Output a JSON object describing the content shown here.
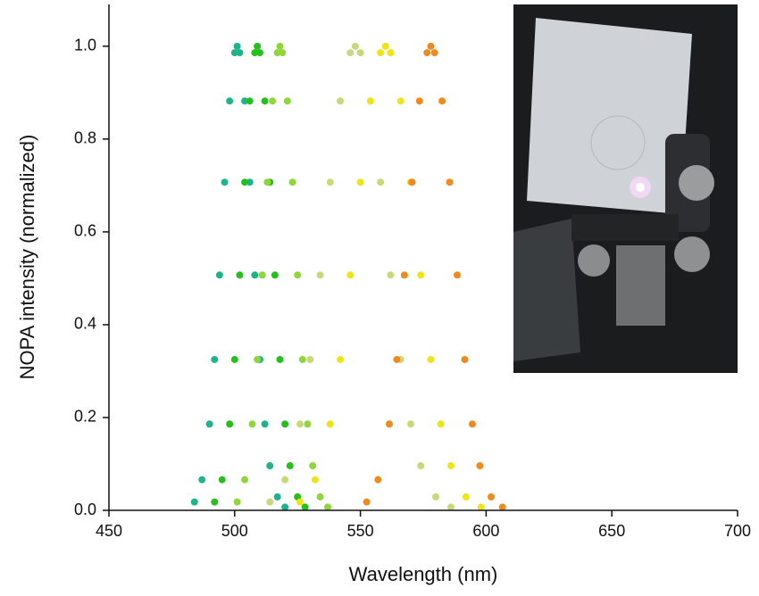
{
  "chart_data": {
    "type": "scatter",
    "xlabel": "Wavelength (nm)",
    "ylabel": "NOPA intensity (normalized)",
    "xlim": [
      450,
      700
    ],
    "ylim": [
      0,
      1.09
    ],
    "xticks": [
      450,
      500,
      550,
      600,
      650,
      700
    ],
    "yticks": [
      {
        "value": 0,
        "label": "0.0"
      },
      0.2,
      0.4,
      0.6,
      0.8,
      {
        "value": 1,
        "label": "1.0"
      }
    ],
    "series": [
      {
        "color": "#1db48c",
        "x": [
          484,
          487,
          490,
          492,
          494,
          496,
          498,
          500,
          501,
          502,
          504,
          506,
          508,
          510,
          512,
          514,
          517,
          520
        ],
        "values": [
          0.018,
          0.066,
          0.186,
          0.325,
          0.507,
          0.707,
          0.882,
          0.986,
          1.0,
          0.986,
          0.882,
          0.707,
          0.507,
          0.325,
          0.186,
          0.096,
          0.029,
          0.007
        ]
      },
      {
        "color": "#25c01c",
        "x": [
          492,
          495,
          498,
          500,
          502,
          504,
          506,
          508,
          509,
          510,
          512,
          514,
          516,
          518,
          520,
          522,
          525,
          528
        ],
        "values": [
          0.018,
          0.066,
          0.186,
          0.325,
          0.507,
          0.707,
          0.882,
          0.986,
          1.0,
          0.986,
          0.882,
          0.707,
          0.507,
          0.325,
          0.186,
          0.096,
          0.029,
          0.007
        ]
      },
      {
        "color": "#8ed63a",
        "x": [
          501,
          504,
          507,
          509,
          511,
          513,
          515,
          517,
          518,
          519,
          521,
          523,
          525,
          527,
          529,
          531,
          534,
          537
        ],
        "values": [
          0.018,
          0.066,
          0.186,
          0.325,
          0.507,
          0.707,
          0.882,
          0.986,
          1.0,
          0.986,
          0.882,
          0.707,
          0.507,
          0.325,
          0.186,
          0.096,
          0.029,
          0.007
        ]
      },
      {
        "color": "#c9d97a",
        "x": [
          514,
          520,
          526,
          530,
          534,
          538,
          542,
          546,
          548,
          550,
          554,
          558,
          562,
          566,
          570,
          574,
          580,
          586
        ],
        "values": [
          0.018,
          0.066,
          0.186,
          0.325,
          0.507,
          0.707,
          0.882,
          0.986,
          1.0,
          0.986,
          0.882,
          0.707,
          0.507,
          0.325,
          0.186,
          0.096,
          0.029,
          0.007
        ]
      },
      {
        "color": "#efe418",
        "x": [
          526,
          532,
          538,
          542,
          546,
          550,
          554,
          558,
          560,
          562,
          566,
          570,
          574,
          578,
          582,
          586,
          592,
          598
        ],
        "values": [
          0.018,
          0.066,
          0.186,
          0.325,
          0.507,
          0.707,
          0.882,
          0.986,
          1.0,
          0.986,
          0.882,
          0.707,
          0.507,
          0.325,
          0.186,
          0.096,
          0.029,
          0.007
        ]
      },
      {
        "color": "#f08a1c",
        "x": [
          552.5,
          557,
          561.5,
          564.5,
          567.5,
          570.5,
          573.5,
          576.5,
          578,
          579.5,
          582.5,
          585.5,
          588.5,
          591.5,
          594.5,
          597.5,
          602,
          606.5
        ],
        "values": [
          0.018,
          0.066,
          0.186,
          0.325,
          0.507,
          0.707,
          0.882,
          0.986,
          1.0,
          0.986,
          0.882,
          0.707,
          0.507,
          0.325,
          0.186,
          0.096,
          0.029,
          0.007
        ]
      }
    ]
  }
}
